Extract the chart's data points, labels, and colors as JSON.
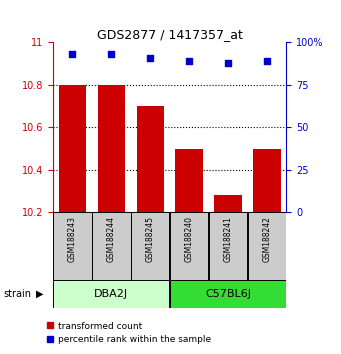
{
  "title": "GDS2877 / 1417357_at",
  "samples": [
    "GSM188243",
    "GSM188244",
    "GSM188245",
    "GSM188240",
    "GSM188241",
    "GSM188242"
  ],
  "bar_values": [
    10.8,
    10.8,
    10.7,
    10.5,
    10.28,
    10.5
  ],
  "bar_color": "#cc0000",
  "bar_bottom": 10.2,
  "blue_dots": [
    93,
    93,
    91,
    89,
    88,
    89
  ],
  "dot_color": "#0000cc",
  "ylim_left": [
    10.2,
    11.0
  ],
  "ylim_right": [
    0,
    100
  ],
  "yticks_left": [
    10.2,
    10.4,
    10.6,
    10.8,
    11.0
  ],
  "ytick_labels_left": [
    "10.2",
    "10.4",
    "10.6",
    "10.8",
    "11"
  ],
  "yticks_right": [
    0,
    25,
    50,
    75,
    100
  ],
  "ytick_labels_right": [
    "0",
    "25",
    "50",
    "75",
    "100%"
  ],
  "gridlines": [
    10.4,
    10.6,
    10.8
  ],
  "strains": [
    {
      "label": "DBA2J",
      "indices": [
        0,
        1,
        2
      ],
      "color": "#ccffcc"
    },
    {
      "label": "C57BL6J",
      "indices": [
        3,
        4,
        5
      ],
      "color": "#33dd33"
    }
  ],
  "strain_label": "strain",
  "left_axis_color": "#cc0000",
  "right_axis_color": "#0000cc",
  "legend_red_label": "transformed count",
  "legend_blue_label": "percentile rank within the sample",
  "sample_box_color": "#cccccc",
  "bar_width": 0.7
}
